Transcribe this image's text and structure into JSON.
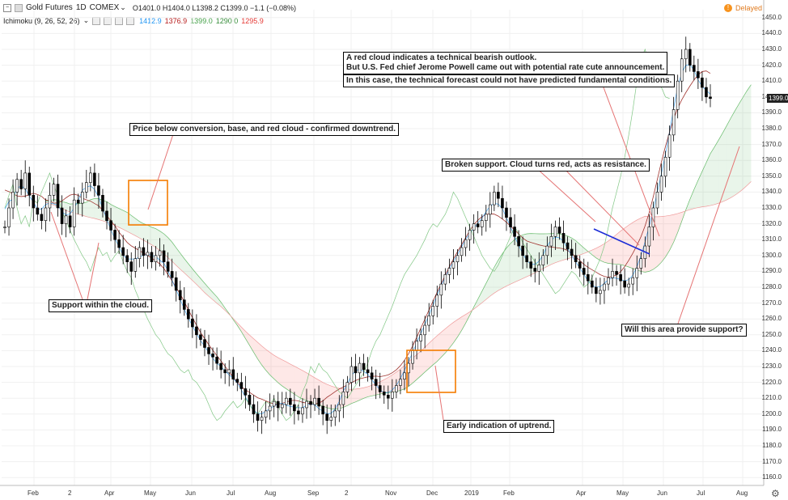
{
  "header": {
    "symbol": "Gold Futures",
    "interval": "1D",
    "exchange": "COMEX",
    "ohlc": "O1401.0  H1404.0  L1398.2  C1399.0  −1.1 (−0.08%)",
    "delayed": "Delayed"
  },
  "indicator": {
    "name": "Ichimoku (9, 26, 52, 26)",
    "values": [
      "1412.9",
      "1376.9",
      "1399.0",
      "1290.0",
      "1295.9"
    ],
    "value_colors": [
      "#2196f3",
      "#b71c1c",
      "#43a047",
      "#388e3c",
      "#e53935"
    ]
  },
  "last_price": "1399.0",
  "annotations": {
    "red_cloud_1": "A red cloud indicates a technical bearish outlook.",
    "red_cloud_2": "But U.S. Fed chief Jerome Powell came out with potential rate cute announcement.",
    "forecast": "In this case, the technical forecast could not have predicted fundamental conditions.",
    "price_below": "Price below conversion, base, and red cloud - confirmed downtrend.",
    "broken_support": "Broken support. Cloud turns red, acts as resistance.",
    "support_cloud": "Support within the cloud.",
    "will_support": "Will this area provide support?",
    "early_uptrend": "Early indication of uptrend."
  },
  "chart_data": {
    "type": "candlestick",
    "y_range": [
      1155,
      1455
    ],
    "y_ticks": [
      "1450.0",
      "1440.0",
      "1430.0",
      "1420.0",
      "1410.0",
      "1400.0",
      "1390.0",
      "1380.0",
      "1370.0",
      "1360.0",
      "1350.0",
      "1340.0",
      "1330.0",
      "1320.0",
      "1310.0",
      "1300.0",
      "1290.0",
      "1280.0",
      "1270.0",
      "1260.0",
      "1250.0",
      "1240.0",
      "1230.0",
      "1220.0",
      "1210.0",
      "1200.0",
      "1190.0",
      "1180.0",
      "1170.0",
      "1160.0"
    ],
    "x_labels": [
      "Feb",
      "2",
      "Apr",
      "May",
      "Jun",
      "Jul",
      "Aug",
      "Sep",
      "2",
      "Nov",
      "Dec",
      "2019",
      "Feb",
      "Apr",
      "May",
      "Jun",
      "Jul",
      "Aug"
    ],
    "close_series": [
      1318,
      1330,
      1340,
      1348,
      1342,
      1352,
      1338,
      1330,
      1326,
      1322,
      1330,
      1338,
      1345,
      1330,
      1320,
      1325,
      1318,
      1335,
      1333,
      1340,
      1346,
      1352,
      1344,
      1338,
      1328,
      1322,
      1316,
      1310,
      1305,
      1300,
      1296,
      1290,
      1298,
      1305,
      1300,
      1302,
      1296,
      1300,
      1303,
      1296,
      1290,
      1286,
      1278,
      1272,
      1266,
      1260,
      1255,
      1250,
      1247,
      1242,
      1238,
      1236,
      1232,
      1228,
      1226,
      1228,
      1222,
      1220,
      1216,
      1212,
      1206,
      1200,
      1196,
      1198,
      1202,
      1205,
      1208,
      1204,
      1206,
      1210,
      1206,
      1202,
      1200,
      1204,
      1208,
      1206,
      1210,
      1205,
      1200,
      1196,
      1198,
      1202,
      1206,
      1214,
      1220,
      1230,
      1226,
      1232,
      1228,
      1226,
      1222,
      1218,
      1214,
      1212,
      1210,
      1214,
      1218,
      1222,
      1226,
      1232,
      1240,
      1246,
      1250,
      1256,
      1262,
      1268,
      1275,
      1282,
      1288,
      1292,
      1296,
      1300,
      1305,
      1310,
      1316,
      1320,
      1318,
      1322,
      1326,
      1332,
      1340,
      1336,
      1330,
      1324,
      1318,
      1312,
      1306,
      1300,
      1296,
      1292,
      1290,
      1294,
      1300,
      1306,
      1312,
      1318,
      1314,
      1308,
      1304,
      1300,
      1296,
      1292,
      1288,
      1284,
      1280,
      1276,
      1278,
      1282,
      1286,
      1290,
      1288,
      1284,
      1280,
      1282,
      1286,
      1292,
      1298,
      1306,
      1318,
      1330,
      1340,
      1350,
      1362,
      1376,
      1392,
      1410,
      1424,
      1430,
      1420,
      1416,
      1412,
      1406,
      1400,
      1399
    ],
    "tenkan_sen": [
      1412.9
    ],
    "kijun_sen": [
      1376.9
    ],
    "chikou_span": [
      1399.0
    ],
    "senkou_span_a": [
      1290.0
    ],
    "senkou_span_b": [
      1295.9
    ]
  }
}
